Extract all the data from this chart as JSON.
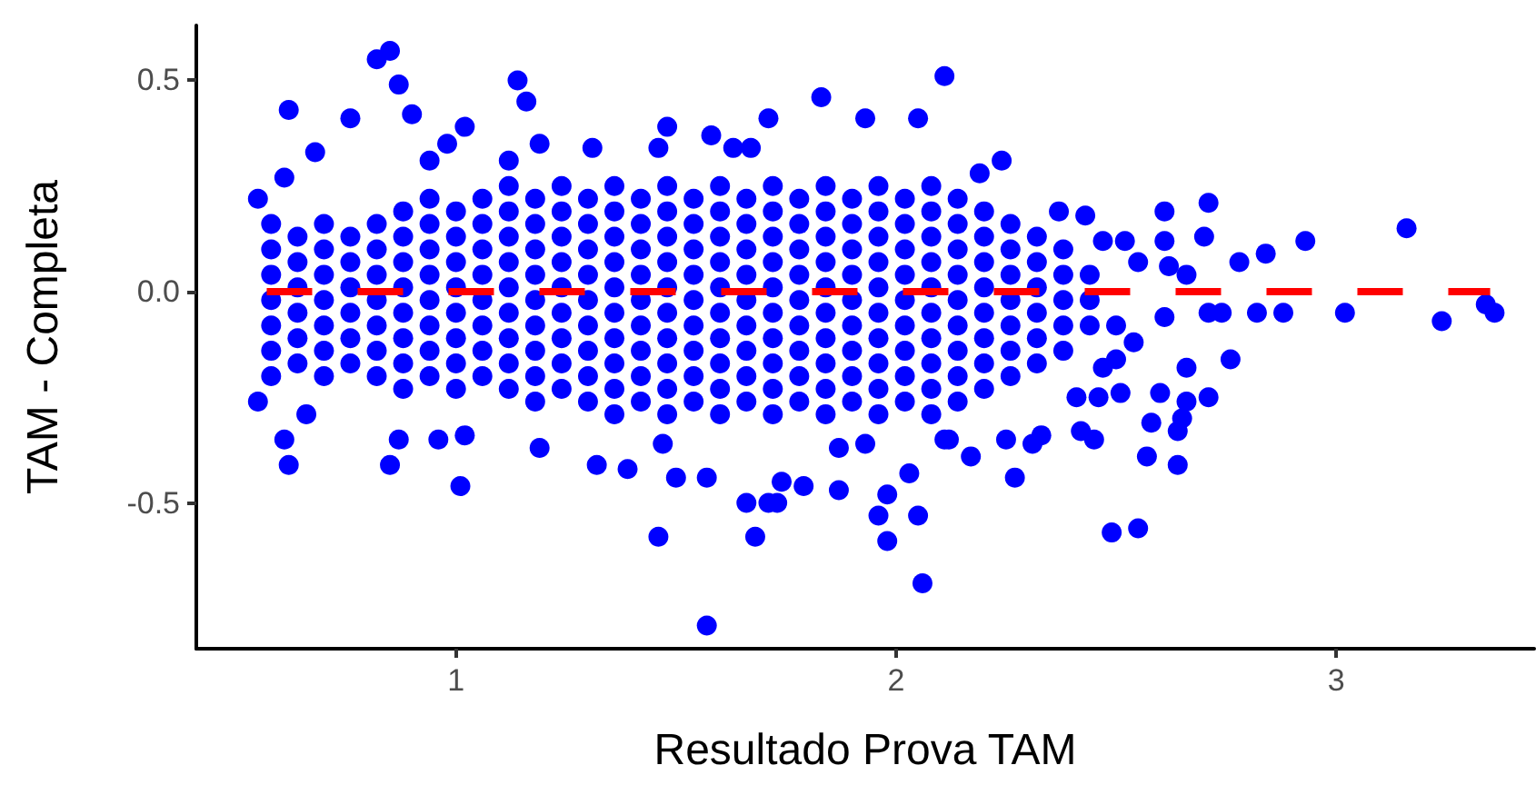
{
  "chart_data": {
    "type": "scatter",
    "xlabel": "Resultado Prova TAM",
    "ylabel": "TAM - Completa",
    "xlim": [
      0.41,
      3.45
    ],
    "ylim": [
      -0.845,
      0.63
    ],
    "xticks": [
      1,
      2,
      3
    ],
    "yticks": [
      {
        "value": -0.5,
        "label": "-0.5"
      },
      {
        "value": 0,
        "label": "0.0"
      },
      {
        "value": 0.5,
        "label": "0.5"
      }
    ],
    "grid": false,
    "marker": "circle",
    "series": [
      {
        "color": "#0000ff",
        "x": [
          0.58,
          0.58,
          0.58,
          0.58,
          0.58,
          0.58,
          0.58,
          0.64,
          0.64,
          0.64,
          0.64,
          0.64,
          0.64,
          0.7,
          0.7,
          0.7,
          0.7,
          0.7,
          0.7,
          0.7,
          0.76,
          0.76,
          0.76,
          0.76,
          0.76,
          0.76,
          0.82,
          0.82,
          0.82,
          0.82,
          0.82,
          0.82,
          0.82,
          0.88,
          0.88,
          0.88,
          0.88,
          0.88,
          0.88,
          0.88,
          0.88,
          0.94,
          0.94,
          0.94,
          0.94,
          0.94,
          0.94,
          0.94,
          0.94,
          1.0,
          1.0,
          1.0,
          1.0,
          1.0,
          1.0,
          1.0,
          1.0,
          1.06,
          1.06,
          1.06,
          1.06,
          1.06,
          1.06,
          1.06,
          1.06,
          1.12,
          1.12,
          1.12,
          1.12,
          1.12,
          1.12,
          1.12,
          1.12,
          1.12,
          1.18,
          1.18,
          1.18,
          1.18,
          1.18,
          1.18,
          1.18,
          1.18,
          1.18,
          1.24,
          1.24,
          1.24,
          1.24,
          1.24,
          1.24,
          1.24,
          1.24,
          1.24,
          1.3,
          1.3,
          1.3,
          1.3,
          1.3,
          1.3,
          1.3,
          1.3,
          1.3,
          1.36,
          1.36,
          1.36,
          1.36,
          1.36,
          1.36,
          1.36,
          1.36,
          1.36,
          1.36,
          1.42,
          1.42,
          1.42,
          1.42,
          1.42,
          1.42,
          1.42,
          1.42,
          1.42,
          1.48,
          1.48,
          1.48,
          1.48,
          1.48,
          1.48,
          1.48,
          1.48,
          1.48,
          1.48,
          1.54,
          1.54,
          1.54,
          1.54,
          1.54,
          1.54,
          1.54,
          1.54,
          1.54,
          1.6,
          1.6,
          1.6,
          1.6,
          1.6,
          1.6,
          1.6,
          1.6,
          1.6,
          1.6,
          1.66,
          1.66,
          1.66,
          1.66,
          1.66,
          1.66,
          1.66,
          1.66,
          1.66,
          1.72,
          1.72,
          1.72,
          1.72,
          1.72,
          1.72,
          1.72,
          1.72,
          1.72,
          1.72,
          1.78,
          1.78,
          1.78,
          1.78,
          1.78,
          1.78,
          1.78,
          1.78,
          1.78,
          1.84,
          1.84,
          1.84,
          1.84,
          1.84,
          1.84,
          1.84,
          1.84,
          1.84,
          1.84,
          1.9,
          1.9,
          1.9,
          1.9,
          1.9,
          1.9,
          1.9,
          1.9,
          1.9,
          1.96,
          1.96,
          1.96,
          1.96,
          1.96,
          1.96,
          1.96,
          1.96,
          1.96,
          1.96,
          2.02,
          2.02,
          2.02,
          2.02,
          2.02,
          2.02,
          2.02,
          2.02,
          2.02,
          2.08,
          2.08,
          2.08,
          2.08,
          2.08,
          2.08,
          2.08,
          2.08,
          2.08,
          2.08,
          2.14,
          2.14,
          2.14,
          2.14,
          2.14,
          2.14,
          2.14,
          2.14,
          2.14,
          2.2,
          2.2,
          2.2,
          2.2,
          2.2,
          2.2,
          2.2,
          2.2,
          2.26,
          2.26,
          2.26,
          2.26,
          2.26,
          2.26,
          2.26,
          2.32,
          2.32,
          2.32,
          2.32,
          2.32,
          2.32,
          2.38,
          2.38,
          2.38,
          2.38,
          2.38,
          2.44,
          2.44,
          2.44,
          0.82,
          0.85,
          0.87,
          0.62,
          0.76,
          0.68,
          0.61,
          0.55,
          1.14,
          1.16,
          1.83,
          1.93,
          2.05,
          1.71,
          1.48,
          1.58,
          1.67,
          1.63,
          1.46,
          1.19,
          1.31,
          1.02,
          0.9,
          0.94,
          0.98,
          1.12,
          2.11,
          0.55,
          0.61,
          0.62,
          0.66,
          0.87,
          0.85,
          0.96,
          1.02,
          1.01,
          1.19,
          1.32,
          1.39,
          1.47,
          1.5,
          1.46,
          1.57,
          1.57,
          1.66,
          1.68,
          1.71,
          1.73,
          1.74,
          1.79,
          1.87,
          1.87,
          1.93,
          1.96,
          1.98,
          1.98,
          2.03,
          2.05,
          2.06,
          2.11,
          2.24,
          2.19,
          2.37,
          2.43,
          2.61,
          2.71,
          2.7,
          2.61,
          2.93,
          3.16,
          2.84,
          2.78,
          2.47,
          2.52,
          2.55,
          2.62,
          2.66,
          2.71,
          2.74,
          2.82,
          2.88,
          3.02,
          3.24,
          3.34,
          3.36,
          2.61,
          2.54,
          2.5,
          2.76,
          2.66,
          2.5,
          2.47,
          2.51,
          2.6,
          2.71,
          2.66,
          2.65,
          2.64,
          2.58,
          2.57,
          2.64,
          2.49,
          2.55,
          2.45,
          2.42,
          2.33,
          2.31,
          2.25,
          2.27,
          2.17,
          2.12,
          2.46,
          2.41
        ],
        "values": [
          -0.2,
          -0.14,
          -0.08,
          -0.02,
          0.04,
          0.1,
          0.16,
          -0.17,
          -0.11,
          -0.05,
          0.01,
          0.07,
          0.13,
          -0.2,
          -0.14,
          -0.08,
          -0.02,
          0.04,
          0.1,
          0.16,
          -0.17,
          -0.11,
          -0.05,
          0.01,
          0.07,
          0.13,
          -0.2,
          -0.14,
          -0.08,
          -0.02,
          0.04,
          0.1,
          0.16,
          -0.23,
          -0.17,
          -0.11,
          -0.05,
          0.01,
          0.07,
          0.13,
          0.19,
          -0.2,
          -0.14,
          -0.08,
          -0.02,
          0.04,
          0.1,
          0.16,
          0.22,
          -0.23,
          -0.17,
          -0.11,
          -0.05,
          0.01,
          0.07,
          0.13,
          0.19,
          -0.2,
          -0.14,
          -0.08,
          -0.02,
          0.04,
          0.1,
          0.16,
          0.22,
          -0.23,
          -0.17,
          -0.11,
          -0.05,
          0.01,
          0.07,
          0.13,
          0.19,
          0.25,
          -0.26,
          -0.2,
          -0.14,
          -0.08,
          -0.02,
          0.04,
          0.1,
          0.16,
          0.22,
          -0.23,
          -0.17,
          -0.11,
          -0.05,
          0.01,
          0.07,
          0.13,
          0.19,
          0.25,
          -0.26,
          -0.2,
          -0.14,
          -0.08,
          -0.02,
          0.04,
          0.1,
          0.16,
          0.22,
          -0.29,
          -0.23,
          -0.17,
          -0.11,
          -0.05,
          0.01,
          0.07,
          0.13,
          0.19,
          0.25,
          -0.26,
          -0.2,
          -0.14,
          -0.08,
          -0.02,
          0.04,
          0.1,
          0.16,
          0.22,
          -0.29,
          -0.23,
          -0.17,
          -0.11,
          -0.05,
          0.01,
          0.07,
          0.13,
          0.19,
          0.25,
          -0.26,
          -0.2,
          -0.14,
          -0.08,
          -0.02,
          0.04,
          0.1,
          0.16,
          0.22,
          -0.29,
          -0.23,
          -0.17,
          -0.11,
          -0.05,
          0.01,
          0.07,
          0.13,
          0.19,
          0.25,
          -0.26,
          -0.2,
          -0.14,
          -0.08,
          -0.02,
          0.04,
          0.1,
          0.16,
          0.22,
          -0.29,
          -0.23,
          -0.17,
          -0.11,
          -0.05,
          0.01,
          0.07,
          0.13,
          0.19,
          0.25,
          -0.26,
          -0.2,
          -0.14,
          -0.08,
          -0.02,
          0.04,
          0.1,
          0.16,
          0.22,
          -0.29,
          -0.23,
          -0.17,
          -0.11,
          -0.05,
          0.01,
          0.07,
          0.13,
          0.19,
          0.25,
          -0.26,
          -0.2,
          -0.14,
          -0.08,
          -0.02,
          0.04,
          0.1,
          0.16,
          0.22,
          -0.29,
          -0.23,
          -0.17,
          -0.11,
          -0.05,
          0.01,
          0.07,
          0.13,
          0.19,
          0.25,
          -0.26,
          -0.2,
          -0.14,
          -0.08,
          -0.02,
          0.04,
          0.1,
          0.16,
          0.22,
          -0.29,
          -0.23,
          -0.17,
          -0.11,
          -0.05,
          0.01,
          0.07,
          0.13,
          0.19,
          0.25,
          -0.26,
          -0.2,
          -0.14,
          -0.08,
          -0.02,
          0.04,
          0.1,
          0.16,
          0.22,
          -0.23,
          -0.17,
          -0.11,
          -0.05,
          0.01,
          0.07,
          0.13,
          0.19,
          -0.2,
          -0.14,
          -0.08,
          -0.02,
          0.04,
          0.1,
          0.16,
          -0.17,
          -0.11,
          -0.05,
          0.01,
          0.07,
          0.13,
          -0.14,
          -0.08,
          -0.02,
          0.04,
          0.1,
          -0.08,
          -0.02,
          0.04,
          0.55,
          0.57,
          0.49,
          0.43,
          0.41,
          0.33,
          0.27,
          0.22,
          0.5,
          0.45,
          0.46,
          0.41,
          0.41,
          0.41,
          0.39,
          0.37,
          0.34,
          0.34,
          0.34,
          0.35,
          0.34,
          0.39,
          0.42,
          0.31,
          0.35,
          0.31,
          0.51,
          -0.26,
          -0.35,
          -0.41,
          -0.29,
          -0.35,
          -0.41,
          -0.35,
          -0.34,
          -0.46,
          -0.37,
          -0.41,
          -0.42,
          -0.36,
          -0.44,
          -0.58,
          -0.44,
          -0.79,
          -0.5,
          -0.58,
          -0.5,
          -0.5,
          -0.45,
          -0.46,
          -0.47,
          -0.37,
          -0.36,
          -0.53,
          -0.48,
          -0.59,
          -0.43,
          -0.53,
          -0.69,
          -0.35,
          0.31,
          0.28,
          0.19,
          0.18,
          0.19,
          0.21,
          0.13,
          0.12,
          0.12,
          0.15,
          0.09,
          0.07,
          0.12,
          0.12,
          0.07,
          0.06,
          0.04,
          -0.05,
          -0.05,
          -0.05,
          -0.05,
          -0.05,
          -0.07,
          -0.03,
          -0.05,
          -0.06,
          -0.12,
          -0.08,
          -0.16,
          -0.18,
          -0.16,
          -0.18,
          -0.24,
          -0.24,
          -0.25,
          -0.26,
          -0.3,
          -0.33,
          -0.31,
          -0.39,
          -0.41,
          -0.57,
          -0.56,
          -0.35,
          -0.33,
          -0.34,
          -0.36,
          -0.35,
          -0.44,
          -0.39,
          -0.35,
          -0.25,
          -0.25
        ]
      },
      {
        "type": "line",
        "color": "#ff0000",
        "line_style": "dashed",
        "marker": "none",
        "x": [
          0.57,
          3.35
        ],
        "values": [
          0,
          0
        ]
      }
    ]
  }
}
